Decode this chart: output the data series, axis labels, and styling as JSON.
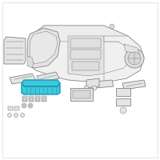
{
  "bg_color": "#ffffff",
  "border_color": "#d0d0d0",
  "line_color": "#7a7a7a",
  "line_color_dark": "#555555",
  "highlight_fill": "#3EC8DC",
  "highlight_edge": "#1A9AB5",
  "fig_width": 2.0,
  "fig_height": 2.0,
  "dpi": 100,
  "lw_main": 0.55,
  "lw_thin": 0.35
}
